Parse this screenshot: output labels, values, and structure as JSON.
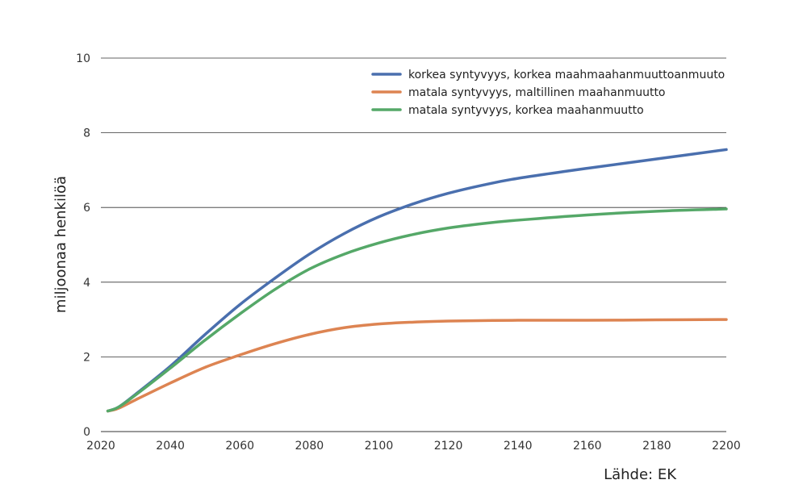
{
  "chart_data": {
    "type": "line",
    "title": "",
    "xlabel": "",
    "ylabel": "miljoonaa henkilöä",
    "xlim": [
      2020,
      2200
    ],
    "ylim": [
      0,
      10
    ],
    "x_ticks": [
      2020,
      2040,
      2060,
      2080,
      2100,
      2120,
      2140,
      2160,
      2180,
      2200
    ],
    "y_ticks": [
      0,
      2,
      4,
      6,
      8,
      10
    ],
    "grid": "horizontal",
    "legend_position": "top-right",
    "source": "Lähde: EK",
    "series": [
      {
        "name": "korkea syntyvyys, korkea maahmaahanmuuttoanmuuto",
        "color": "#4a6fae",
        "x": [
          2022,
          2025,
          2030,
          2040,
          2050,
          2060,
          2070,
          2080,
          2090,
          2100,
          2110,
          2120,
          2130,
          2140,
          2160,
          2180,
          2200
        ],
        "y": [
          0.55,
          0.65,
          1.0,
          1.75,
          2.6,
          3.4,
          4.1,
          4.75,
          5.3,
          5.75,
          6.1,
          6.38,
          6.6,
          6.78,
          7.05,
          7.3,
          7.55
        ]
      },
      {
        "name": "matala syntyvyys, maltillinen maahanmuutto",
        "color": "#dd8452",
        "x": [
          2022,
          2025,
          2030,
          2040,
          2050,
          2060,
          2070,
          2080,
          2090,
          2100,
          2110,
          2120,
          2140,
          2160,
          2180,
          2200
        ],
        "y": [
          0.55,
          0.62,
          0.85,
          1.3,
          1.72,
          2.05,
          2.35,
          2.6,
          2.78,
          2.88,
          2.93,
          2.96,
          2.98,
          2.98,
          2.99,
          3.0
        ]
      },
      {
        "name": "matala syntyvyys, korkea maahanmuutto",
        "color": "#55a868",
        "x": [
          2022,
          2025,
          2030,
          2040,
          2050,
          2060,
          2070,
          2080,
          2090,
          2100,
          2110,
          2120,
          2130,
          2140,
          2160,
          2180,
          2200
        ],
        "y": [
          0.55,
          0.65,
          0.98,
          1.7,
          2.45,
          3.15,
          3.8,
          4.35,
          4.75,
          5.05,
          5.28,
          5.45,
          5.57,
          5.66,
          5.8,
          5.9,
          5.96
        ]
      }
    ]
  }
}
